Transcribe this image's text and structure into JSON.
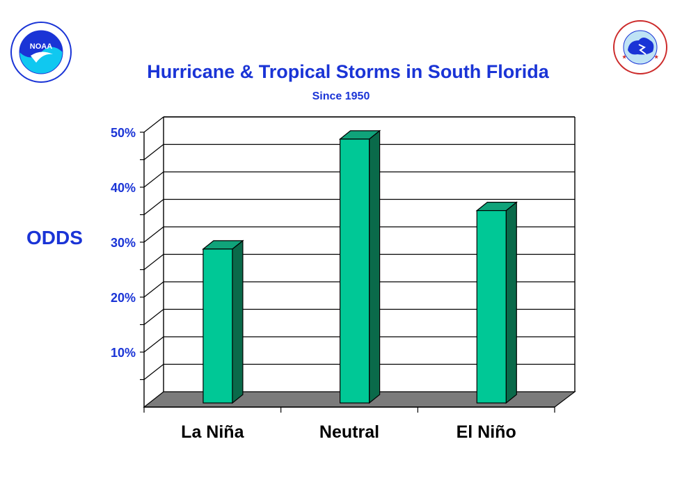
{
  "colors": {
    "title": "#1a34d6",
    "bar_front": "#00c896",
    "bar_side": "#0a6a4a",
    "bar_top": "#10a37a",
    "floor": "#7b7b7b"
  },
  "logos": {
    "left": {
      "icon": "noaa-logo-icon",
      "text": "NOAA"
    },
    "right": {
      "icon": "nws-logo-icon"
    }
  },
  "chart_data": {
    "type": "bar",
    "title": "Hurricane & Tropical Storms in South Florida",
    "subtitle": "Since 1950",
    "ylabel": "ODDS",
    "xlabel": "",
    "categories": [
      "La Niña",
      "Neutral",
      "El Niño"
    ],
    "values": [
      28,
      48,
      35
    ],
    "unit": "%",
    "ylim": [
      0,
      50
    ],
    "yticks": [
      10,
      20,
      30,
      40,
      50
    ],
    "ytick_labels": [
      "10%",
      "20%",
      "30%",
      "40%",
      "50%"
    ],
    "grid": true,
    "style": "3d"
  }
}
